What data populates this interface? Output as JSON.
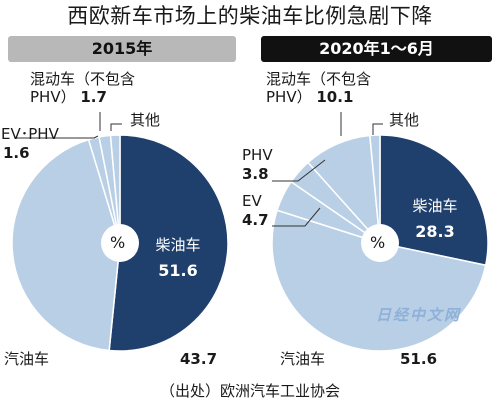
{
  "title": "西欧新车市场上的柴油车比例急剧下降",
  "source": "（出处）欧洲汽车工业协会",
  "watermark": "日经中文网",
  "center_symbol": "%",
  "colors": {
    "diesel": "#1f3f6c",
    "other": "#b9cfe6",
    "border": "#ffffff"
  },
  "chart_data": [
    {
      "type": "pie",
      "title": "2015年",
      "slices": [
        {
          "label": "柴油车",
          "value": 51.6
        },
        {
          "label": "汽油车",
          "value": 43.7
        },
        {
          "label": "EV･PHV",
          "value": 1.6
        },
        {
          "label": "混动车（不包含PHV）",
          "value": 1.7
        },
        {
          "label": "其他",
          "value": 1.4
        }
      ]
    },
    {
      "type": "pie",
      "title": "2020年1～6月",
      "slices": [
        {
          "label": "柴油车",
          "value": 28.3
        },
        {
          "label": "汽油车",
          "value": 51.6
        },
        {
          "label": "EV",
          "value": 4.7
        },
        {
          "label": "PHV",
          "value": 3.8
        },
        {
          "label": "混动车（不包含PHV）",
          "value": 10.1
        },
        {
          "label": "其他",
          "value": 1.5
        }
      ]
    }
  ],
  "labels": {
    "left": {
      "hybrid_line1": "混动车（不包含",
      "hybrid_line2": "PHV）",
      "hybrid_value": "1.7",
      "evphv": "EV･PHV",
      "evphv_value": "1.6",
      "other": "其他",
      "diesel": "柴油车",
      "diesel_value": "51.6",
      "petrol": "汽油车",
      "petrol_value": "43.7"
    },
    "right": {
      "hybrid_line1": "混动车（不包含",
      "hybrid_line2": "PHV）",
      "hybrid_value": "10.1",
      "phv": "PHV",
      "phv_value": "3.8",
      "ev": "EV",
      "ev_value": "4.7",
      "other": "其他",
      "diesel": "柴油车",
      "diesel_value": "28.3",
      "petrol": "汽油车",
      "petrol_value": "51.6"
    }
  }
}
